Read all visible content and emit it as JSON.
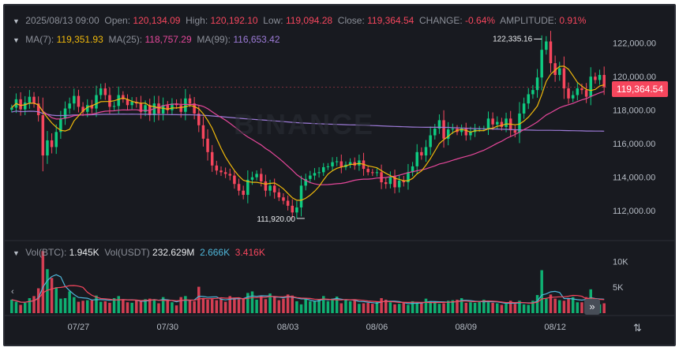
{
  "header": {
    "date": "2025/08/13 09:00",
    "open_label": "Open:",
    "open": "120,134.09",
    "high_label": "High:",
    "high": "120,192.10",
    "low_label": "Low:",
    "low": "119,094.28",
    "close_label": "Close:",
    "close": "119,364.54",
    "change_label": "CHANGE:",
    "change": "-0.64%",
    "amplitude_label": "AMPLITUDE:",
    "amplitude": "0.91%"
  },
  "ma_row": {
    "ma7_label": "MA(7):",
    "ma7": "119,351.93",
    "ma25_label": "MA(25):",
    "ma25": "118,757.29",
    "ma99_label": "MA(99):",
    "ma99": "116,653.42"
  },
  "vol_row": {
    "vol_btc_label": "Vol(BTC):",
    "vol_btc": "1.945K",
    "vol_usdt_label": "Vol(USDT)",
    "vol_usdt": "232.629M",
    "vol_ma1": "2.666K",
    "vol_ma2": "3.416K"
  },
  "watermark": "BINANCE",
  "current_price_tag": "119,364.54",
  "colors": {
    "up": "#0ecb81",
    "down": "#f6465d",
    "ma7": "#f0b90b",
    "ma25": "#e5479a",
    "ma99": "#9d7bd8",
    "vol_ma": "#4fb6d9"
  },
  "chart_data": {
    "type": "candlestick",
    "y_ticks": [
      "122,000.00",
      "120,000.00",
      "118,000.00",
      "116,000.00",
      "114,000.00",
      "112,000.00"
    ],
    "y_tick_values": [
      122000,
      120000,
      118000,
      116000,
      114000,
      112000
    ],
    "ylim": [
      110600,
      123300
    ],
    "x_ticks": [
      "07/27",
      "07/30",
      "08/03",
      "08/06",
      "08/09",
      "08/12"
    ],
    "x_tick_index": [
      15,
      35,
      62,
      82,
      102,
      122
    ],
    "vol_ticks": [
      "10K",
      "5K"
    ],
    "vol_tick_values": [
      10000,
      5000
    ],
    "vol_max": 12500,
    "annotations": [
      {
        "label": "122,335.16",
        "index": 119,
        "price": 122335.16,
        "kind": "high"
      },
      {
        "label": "111,920.00",
        "index": 64,
        "price": 111920.0,
        "kind": "low"
      }
    ],
    "close": [
      118150,
      118650,
      118050,
      118450,
      118800,
      118400,
      117700,
      115300,
      116200,
      115800,
      116700,
      117500,
      118100,
      118400,
      118850,
      118200,
      117900,
      118300,
      118100,
      118900,
      119300,
      118900,
      118200,
      118250,
      118900,
      118650,
      118300,
      118500,
      118400,
      117900,
      118300,
      117700,
      118400,
      117800,
      118300,
      118000,
      118400,
      118300,
      117900,
      118700,
      118400,
      117800,
      117100,
      116300,
      115500,
      114700,
      114400,
      114300,
      114200,
      114100,
      113600,
      113200,
      112950,
      113850,
      114000,
      114200,
      113750,
      113200,
      113500,
      113100,
      112800,
      112600,
      112300,
      111900,
      112200,
      113500,
      113900,
      114100,
      114250,
      114300,
      114600,
      114650,
      114900,
      114950,
      114600,
      114750,
      114900,
      114700,
      115000,
      114500,
      114300,
      114250,
      114300,
      113700,
      113600,
      114050,
      113400,
      113800,
      113700,
      114300,
      114650,
      115500,
      115300,
      115800,
      116500,
      116900,
      117400,
      116300,
      116850,
      116900,
      116700,
      116900,
      116500,
      116700,
      116850,
      116900,
      116900,
      117500,
      117150,
      117300,
      117000,
      117500,
      116800,
      116650,
      117800,
      118400,
      118950,
      119200,
      119950,
      121600,
      122100,
      120800,
      120100,
      120500,
      119300,
      118700,
      118900,
      119300,
      119200,
      118800,
      120000,
      119800,
      120100,
      119365
    ],
    "volume": [
      2600,
      2200,
      1600,
      2000,
      2900,
      3300,
      4800,
      12000,
      8500,
      6800,
      5000,
      2800,
      2900,
      4200,
      3100,
      2200,
      2400,
      2500,
      2500,
      3400,
      2200,
      2300,
      2000,
      2900,
      3300,
      2600,
      2100,
      2000,
      2500,
      2300,
      2700,
      2800,
      2700,
      1900,
      3100,
      2400,
      2100,
      1500,
      3100,
      3300,
      2500,
      2300,
      5100,
      2900,
      2600,
      2700,
      2500,
      2800,
      2200,
      3300,
      3000,
      2700,
      2800,
      3900,
      4200,
      2600,
      3300,
      2700,
      3800,
      3100,
      2500,
      2800,
      3600,
      3400,
      2300,
      1700,
      2900,
      2300,
      2400,
      2600,
      3300,
      2300,
      2800,
      3200,
      1900,
      2600,
      2300,
      2600,
      1800,
      1900,
      2000,
      1800,
      2200,
      2900,
      2600,
      2100,
      1700,
      1800,
      2000,
      1600,
      2300,
      1900,
      2000,
      2800,
      2300,
      2100,
      1800,
      1900,
      2400,
      2500,
      2600,
      2900,
      2000,
      2100,
      2000,
      2300,
      2600,
      2100,
      2000,
      1900,
      1600,
      1800,
      2400,
      1800,
      2400,
      1700,
      1600,
      2400,
      3500,
      8300,
      2800,
      3600,
      2800,
      2500,
      2400,
      2900,
      3100,
      2100,
      2100,
      3100,
      4600,
      2200,
      1700,
      1900
    ]
  }
}
